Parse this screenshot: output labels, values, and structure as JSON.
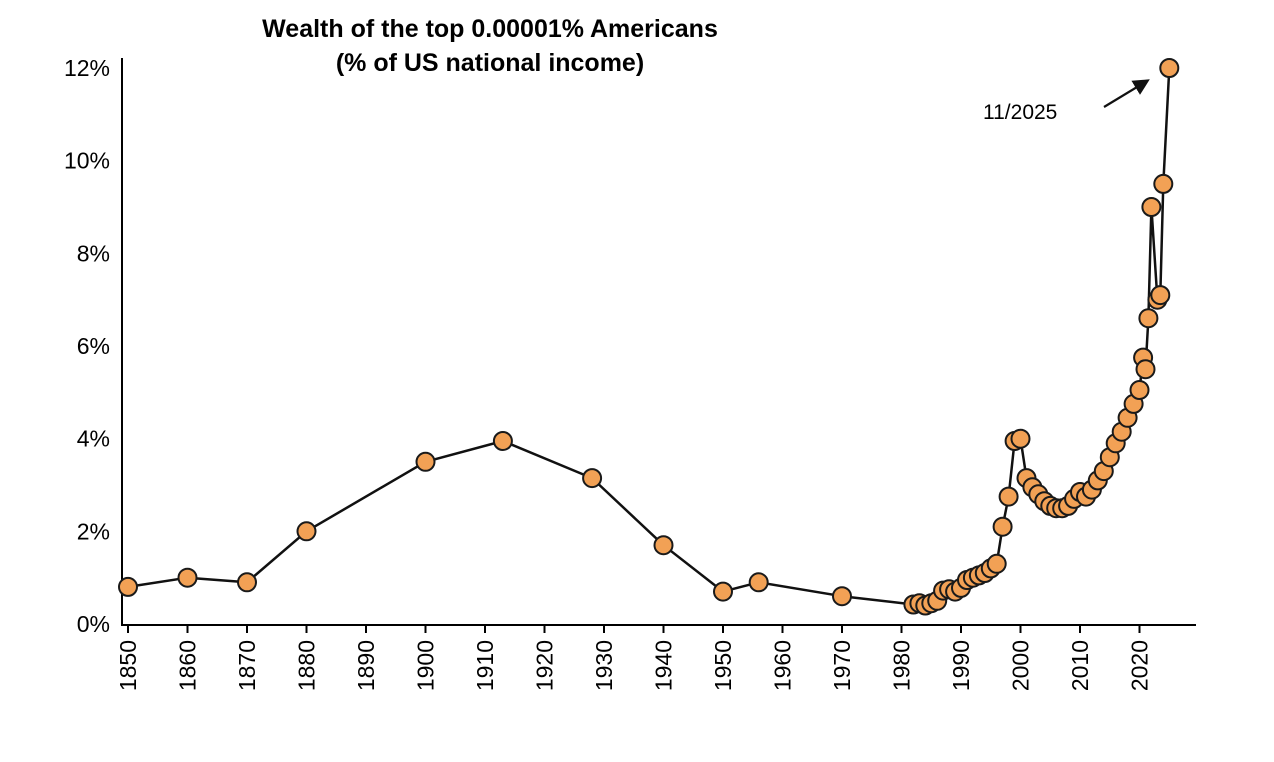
{
  "title": {
    "line1": "Wealth of the top 0.00001% Americans",
    "line2": "(% of US national income)"
  },
  "annotation": {
    "label": "11/2025"
  },
  "chart_data": {
    "type": "line",
    "title": "Wealth of the top 0.00001% Americans (% of US national income)",
    "xlabel": "",
    "ylabel": "% of US national income",
    "xlim": [
      1848,
      2028
    ],
    "ylim": [
      0,
      12
    ],
    "grid": false,
    "legend": null,
    "x_ticks": [
      1850,
      1860,
      1870,
      1880,
      1890,
      1900,
      1910,
      1920,
      1930,
      1940,
      1950,
      1960,
      1970,
      1980,
      1990,
      2000,
      2010,
      2020
    ],
    "y_ticks": [
      0,
      2,
      4,
      6,
      8,
      10,
      12
    ],
    "y_tick_suffix": "%",
    "marker_color": "#F2A155",
    "marker_edge_color": "#1a1a1a",
    "line_color": "#111111",
    "annotations": [
      {
        "label": "11/2025",
        "target_year": 2025,
        "target_value": 12.0
      }
    ],
    "points": [
      [
        1850,
        0.8
      ],
      [
        1860,
        1.0
      ],
      [
        1870,
        0.9
      ],
      [
        1880,
        2.0
      ],
      [
        1900,
        3.5
      ],
      [
        1913,
        3.95
      ],
      [
        1928,
        3.15
      ],
      [
        1940,
        1.7
      ],
      [
        1950,
        0.7
      ],
      [
        1956,
        0.9
      ],
      [
        1970,
        0.6
      ],
      [
        1982,
        0.42
      ],
      [
        1983,
        0.45
      ],
      [
        1984,
        0.4
      ],
      [
        1985,
        0.45
      ],
      [
        1986,
        0.5
      ],
      [
        1987,
        0.72
      ],
      [
        1988,
        0.75
      ],
      [
        1989,
        0.7
      ],
      [
        1990,
        0.78
      ],
      [
        1991,
        0.95
      ],
      [
        1992,
        1.0
      ],
      [
        1993,
        1.05
      ],
      [
        1994,
        1.1
      ],
      [
        1995,
        1.2
      ],
      [
        1996,
        1.3
      ],
      [
        1997,
        2.1
      ],
      [
        1998,
        2.75
      ],
      [
        1999,
        3.95
      ],
      [
        2000,
        4.0
      ],
      [
        2001,
        3.15
      ],
      [
        2002,
        2.95
      ],
      [
        2003,
        2.8
      ],
      [
        2004,
        2.65
      ],
      [
        2005,
        2.55
      ],
      [
        2006,
        2.5
      ],
      [
        2007,
        2.5
      ],
      [
        2008,
        2.55
      ],
      [
        2009,
        2.7
      ],
      [
        2010,
        2.85
      ],
      [
        2011,
        2.75
      ],
      [
        2012,
        2.9
      ],
      [
        2013,
        3.1
      ],
      [
        2014,
        3.3
      ],
      [
        2015,
        3.6
      ],
      [
        2016,
        3.9
      ],
      [
        2017,
        4.15
      ],
      [
        2018,
        4.45
      ],
      [
        2019,
        4.75
      ],
      [
        2020,
        5.05
      ],
      [
        2020.6,
        5.75
      ],
      [
        2021,
        5.5
      ],
      [
        2021.5,
        6.6
      ],
      [
        2022,
        9.0
      ],
      [
        2023,
        7.0
      ],
      [
        2023.5,
        7.1
      ],
      [
        2024,
        9.5
      ],
      [
        2025,
        12.0
      ]
    ]
  }
}
